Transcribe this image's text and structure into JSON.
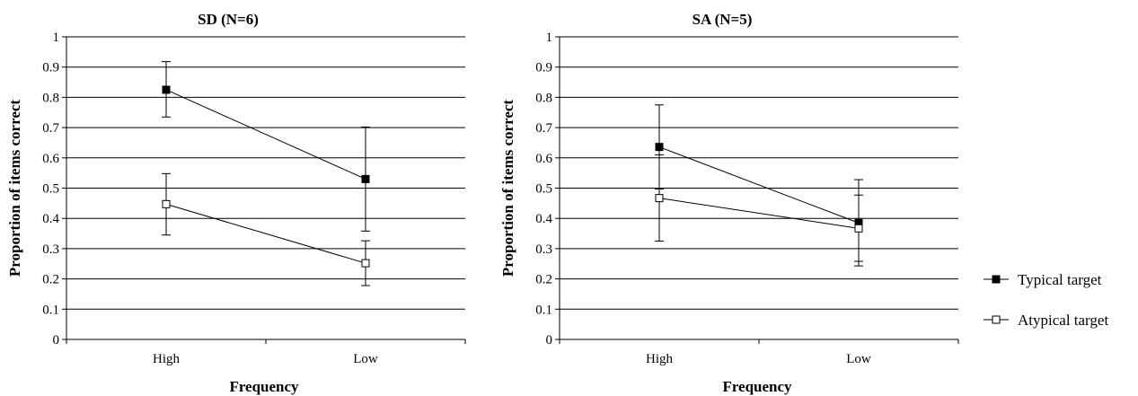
{
  "chart_data": [
    {
      "type": "line",
      "title": "SD (N=6)",
      "xlabel": "Frequency",
      "ylabel": "Proportion of items correct",
      "categories": [
        "High",
        "Low"
      ],
      "ylim": [
        0,
        1
      ],
      "yticks": [
        "0",
        "0.1",
        "0.2",
        "0.3",
        "0.4",
        "0.5",
        "0.6",
        "0.7",
        "0.8",
        "0.9",
        "1"
      ],
      "grid": true,
      "series": [
        {
          "name": "Typical target",
          "marker": "filled-square",
          "values": [
            0.825,
            0.53
          ],
          "err_low": [
            0.735,
            0.358
          ],
          "err_high": [
            0.918,
            0.702
          ]
        },
        {
          "name": "Atypical target",
          "marker": "open-square",
          "values": [
            0.447,
            0.252
          ],
          "err_low": [
            0.345,
            0.178
          ],
          "err_high": [
            0.548,
            0.326
          ]
        }
      ]
    },
    {
      "type": "line",
      "title": "SA (N=5)",
      "xlabel": "Frequency",
      "ylabel": "Proportion of items correct",
      "categories": [
        "High",
        "Low"
      ],
      "ylim": [
        0,
        1
      ],
      "yticks": [
        "0",
        "0.1",
        "0.2",
        "0.3",
        "0.4",
        "0.5",
        "0.6",
        "0.7",
        "0.8",
        "0.9",
        "1"
      ],
      "grid": true,
      "series": [
        {
          "name": "Typical target",
          "marker": "filled-square",
          "values": [
            0.636,
            0.385
          ],
          "err_low": [
            0.497,
            0.243
          ],
          "err_high": [
            0.775,
            0.528
          ]
        },
        {
          "name": "Atypical target",
          "marker": "open-square",
          "values": [
            0.467,
            0.367
          ],
          "err_low": [
            0.325,
            0.258
          ],
          "err_high": [
            0.61,
            0.477
          ]
        }
      ]
    }
  ],
  "legend": {
    "placement": "right",
    "items": [
      {
        "label": "Typical target",
        "marker": "filled-square"
      },
      {
        "label": "Atypical target",
        "marker": "open-square"
      }
    ]
  }
}
